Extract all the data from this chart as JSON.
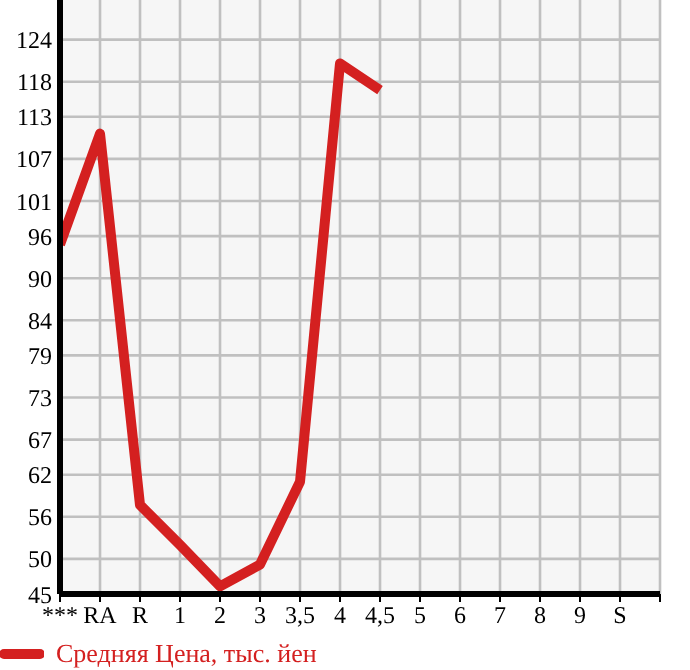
{
  "chart_data": {
    "type": "line",
    "categories": [
      "***",
      "RA",
      "R",
      "1",
      "2",
      "3",
      "3,5",
      "4",
      "4,5",
      "5",
      "6",
      "7",
      "8",
      "9",
      "S",
      null
    ],
    "series": [
      {
        "name": "Средняя Цена, тыс. йен",
        "color": "#d42020",
        "values": [
          94.8,
          110.6,
          57.7,
          52.0,
          46.1,
          49.2,
          61.0,
          120.6,
          116.8,
          null,
          null,
          null,
          null,
          null,
          null,
          null
        ]
      }
    ],
    "ylim": [
      45,
      129.64
    ],
    "yticks": [
      45,
      50,
      56,
      62,
      67,
      73,
      79,
      84,
      90,
      96,
      101,
      107,
      113,
      118,
      124
    ],
    "grid": true,
    "legend": "bottom left",
    "marker": "none",
    "line_style": "solid"
  }
}
